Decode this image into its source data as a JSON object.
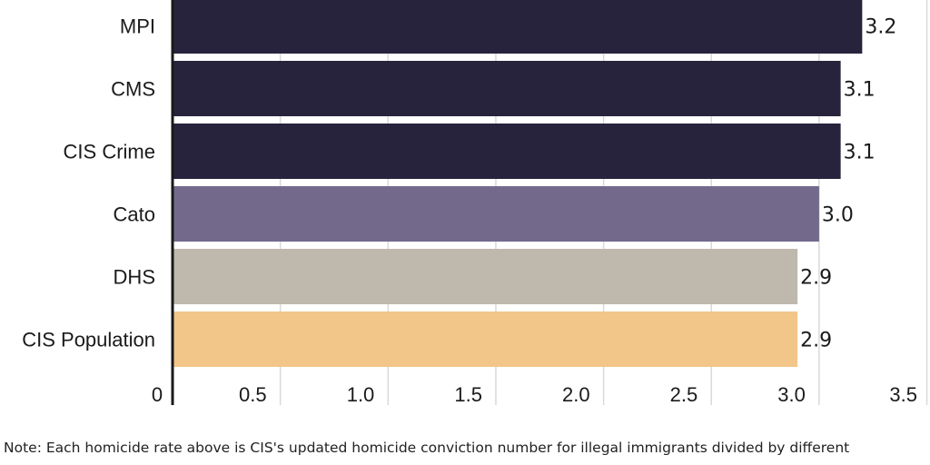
{
  "chart_data": {
    "type": "bar",
    "orientation": "horizontal",
    "categories": [
      "MPI",
      "CMS",
      "CIS Crime",
      "Cato",
      "DHS",
      "CIS Population"
    ],
    "values": [
      3.2,
      3.1,
      3.1,
      3.0,
      2.9,
      2.9
    ],
    "value_labels": [
      "3.2",
      "3.1",
      "3.1",
      "3.0",
      "2.9",
      "2.9"
    ],
    "bar_colors": [
      "#28233d",
      "#28233d",
      "#28233d",
      "#736a8b",
      "#bfb8ac",
      "#f2c689"
    ],
    "xlim": [
      0,
      3.5
    ],
    "x_ticks": [
      0,
      0.5,
      1.0,
      1.5,
      2.0,
      2.5,
      3.0,
      3.5
    ],
    "x_tick_labels": [
      "0",
      "0.5",
      "1.0",
      "1.5",
      "2.0",
      "2.5",
      "3.0",
      "3.5"
    ],
    "grid": "vertical",
    "grid_color": "#d9d9d9",
    "axis_color": "#1a1a1a"
  },
  "note": "Note: Each homicide rate above is CIS's updated homicide conviction number for illegal immigrants divided by different"
}
